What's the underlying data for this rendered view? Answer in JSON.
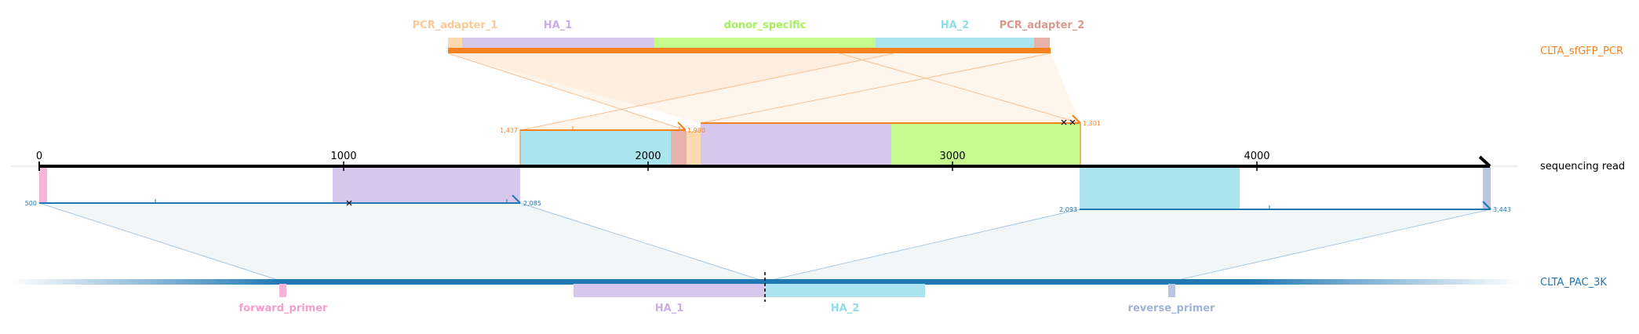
{
  "tracks": {
    "pcr": "CLTA_sfGFP_PCR",
    "read": "sequencing read",
    "ref": "CLTA_PAC_3K"
  },
  "pcr_features": [
    {
      "label": "PCR_adapter_1",
      "color": "#fdd9b0",
      "text_color": "#fbc999"
    },
    {
      "label": "HA_1",
      "color": "#d8c7ec",
      "text_color": "#c9aee6"
    },
    {
      "label": "donor_specific",
      "color": "#c5fb8c",
      "text_color": "#a7ef5f"
    },
    {
      "label": "HA_2",
      "color": "#aae4ee",
      "text_color": "#8fdceb"
    },
    {
      "label": "PCR_adapter_2",
      "color": "#e5b1a8",
      "text_color": "#d99a8e"
    }
  ],
  "ref_features": [
    {
      "label": "forward_primer",
      "color": "#f7b6d8",
      "text_color": "#f59ecb"
    },
    {
      "label": "HA_1",
      "color": "#d8c7ec",
      "text_color": "#c9aee6"
    },
    {
      "label": "HA_2",
      "color": "#aae4ee",
      "text_color": "#8fdceb"
    },
    {
      "label": "reverse_primer",
      "color": "#b9c6e0",
      "text_color": "#9fb3d8"
    }
  ],
  "read_axis_ticks": [
    "0",
    "1000",
    "2000",
    "3000",
    "4000"
  ],
  "alignment_numbers": {
    "pcr_left_start": "1,437",
    "pcr_left_end": "1,980",
    "pcr_right_end": "1,301",
    "ref_left_start": "500",
    "ref_left_end": "2,085",
    "ref_right_start": "2,093",
    "ref_right_end": "3,443"
  },
  "colors": {
    "pcr": "#f5821f",
    "ref": "#1f77b4",
    "read": "#000000"
  }
}
